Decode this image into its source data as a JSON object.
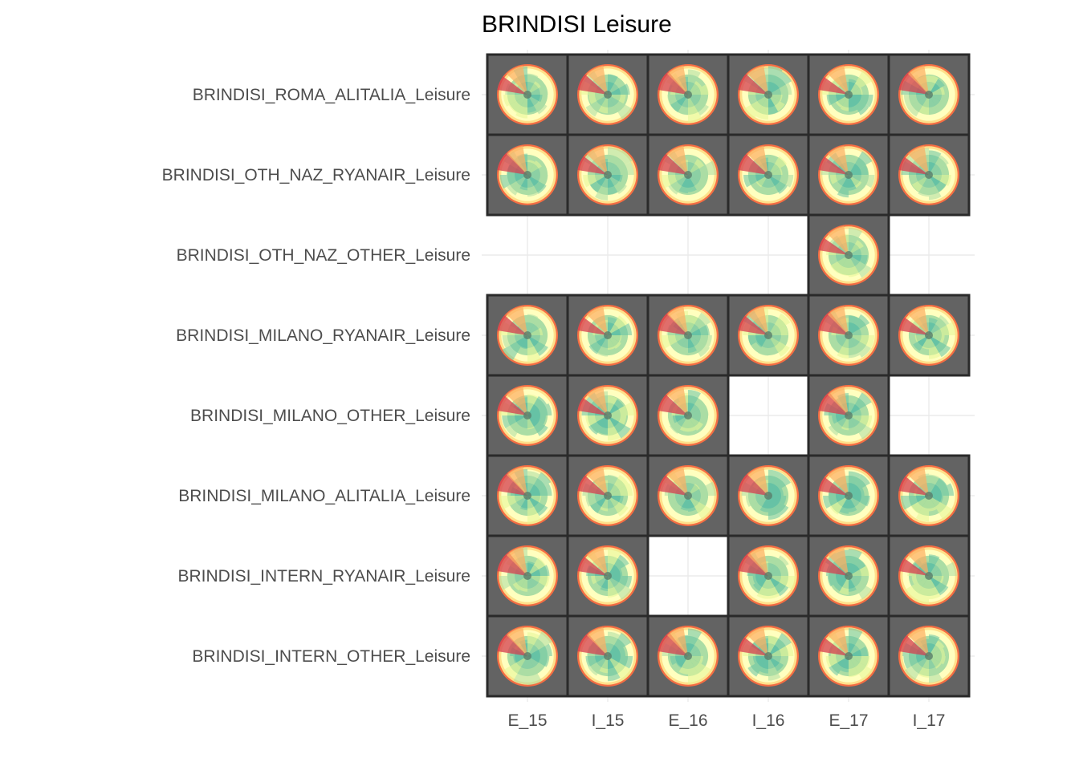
{
  "chart_data": {
    "type": "heatmap",
    "title": "BRINDISI Leisure",
    "xlabel": "",
    "ylabel": "",
    "grid": true,
    "legend": "none",
    "x_categories": [
      "E_15",
      "I_15",
      "E_16",
      "I_16",
      "E_17",
      "I_17"
    ],
    "y_categories": [
      "BRINDISI_ROMA_ALITALIA_Leisure",
      "BRINDISI_OTH_NAZ_RYANAIR_Leisure",
      "BRINDISI_OTH_NAZ_OTHER_Leisure",
      "BRINDISI_MILANO_RYANAIR_Leisure",
      "BRINDISI_MILANO_OTHER_Leisure",
      "BRINDISI_MILANO_ALITALIA_Leisure",
      "BRINDISI_INTERN_RYANAIR_Leisure",
      "BRINDISI_INTERN_OTHER_Leisure"
    ],
    "present": [
      [
        1,
        1,
        1,
        1,
        1,
        1
      ],
      [
        1,
        1,
        1,
        1,
        1,
        1
      ],
      [
        0,
        0,
        0,
        0,
        1,
        0
      ],
      [
        1,
        1,
        1,
        1,
        1,
        1
      ],
      [
        1,
        1,
        1,
        0,
        1,
        0
      ],
      [
        1,
        1,
        1,
        1,
        1,
        1
      ],
      [
        1,
        1,
        0,
        1,
        1,
        1
      ],
      [
        1,
        1,
        1,
        1,
        1,
        1
      ]
    ],
    "colors": {
      "tile_background": "#636363",
      "tile_separator": "#2a2a2a",
      "gridline": "#ebebeb",
      "palette": [
        "#d53e4f",
        "#f46d43",
        "#fdae61",
        "#fee08b",
        "#ffffbf",
        "#e6f598",
        "#abdda4",
        "#66c2a5"
      ]
    }
  }
}
